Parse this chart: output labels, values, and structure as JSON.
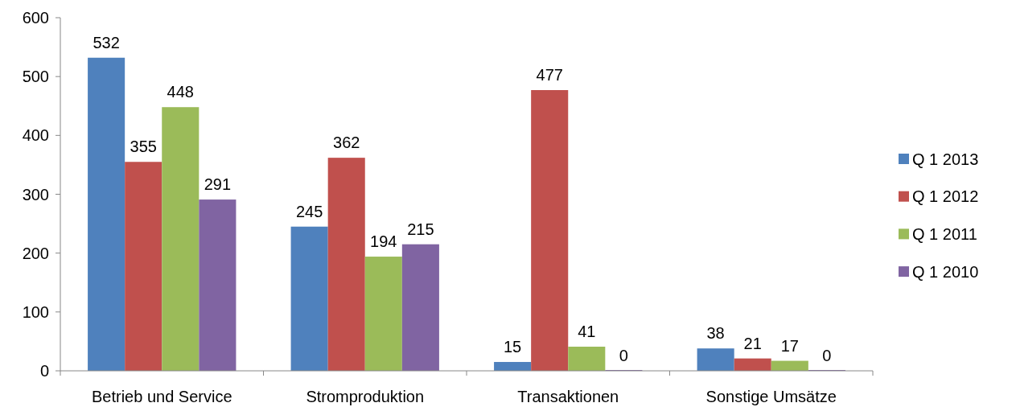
{
  "chart_data": {
    "type": "bar",
    "categories": [
      "Betrieb und Service",
      "Stromproduktion",
      "Transaktionen",
      "Sonstige Umsätze"
    ],
    "series": [
      {
        "name": "Q 1 2013",
        "color": "#4f81bd",
        "values": [
          532,
          245,
          15,
          38
        ]
      },
      {
        "name": "Q 1 2012",
        "color": "#c0504d",
        "values": [
          355,
          362,
          477,
          21
        ]
      },
      {
        "name": "Q 1 2011",
        "color": "#9bbb59",
        "values": [
          448,
          194,
          41,
          17
        ]
      },
      {
        "name": "Q 1 2010",
        "color": "#8064a2",
        "values": [
          291,
          215,
          0,
          0
        ]
      }
    ],
    "ylim": [
      0,
      600
    ],
    "yticks": [
      0,
      100,
      200,
      300,
      400,
      500,
      600
    ],
    "grid": false,
    "legend": "right",
    "data_labels": true
  }
}
